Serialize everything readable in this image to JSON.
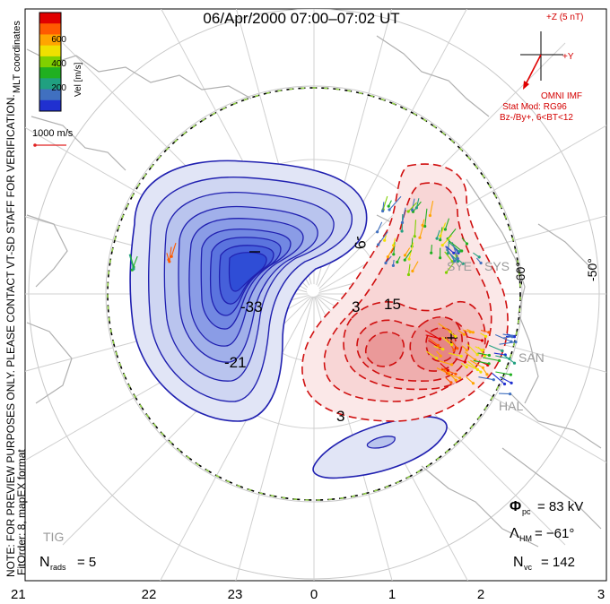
{
  "title": "06/Apr/2000 07:00–07:02 UT",
  "colorbar": {
    "label": "Vel [m/s]",
    "ticks": [
      "600",
      "400",
      "200"
    ],
    "colors": [
      "#e00000",
      "#ff5a00",
      "#ffa500",
      "#f0e000",
      "#80d000",
      "#20b020",
      "#20a080",
      "#4070c0",
      "#2030d0"
    ]
  },
  "coord_label": "MLT coordinates",
  "vector_scale": "1000 m/s",
  "imf": {
    "plus_z": "+Z (5 nT)",
    "plus_y": "+Y",
    "label": "OMNI IMF",
    "stat_mod": "Stat Mod: RG96",
    "conditions": "Bz-/By+, 6<BT<12"
  },
  "side_note": "NOTE: FOR PREVIEW PURPOSES ONLY. PLEASE CONTACT VT-SD STAFF FOR VERIFICATION.",
  "fit_order": "FitOrder: 8, mapEX format",
  "lat_labels": [
    "-50°",
    "-60°"
  ],
  "contour_labels": {
    "neg": [
      "-9",
      "-33",
      "-21"
    ],
    "pos": [
      "3",
      "15",
      "3"
    ]
  },
  "stations": [
    "SYE",
    "SYS",
    "SAN",
    "HAL",
    "TIG"
  ],
  "stats": {
    "phi_pc": "Φ",
    "phi_sub": "pc",
    "phi_value": "= 83 kV",
    "lambda": "Λ",
    "lambda_sub": "HM",
    "lambda_value": "= −61°",
    "nvc": "N",
    "nvc_sub": "vc",
    "nvc_value": "= 142",
    "nrads": "N",
    "nrads_sub": "rads",
    "nrads_value": "= 5"
  },
  "mlt_ticks": [
    "21",
    "22",
    "23",
    "0",
    "1",
    "2",
    "3"
  ]
}
